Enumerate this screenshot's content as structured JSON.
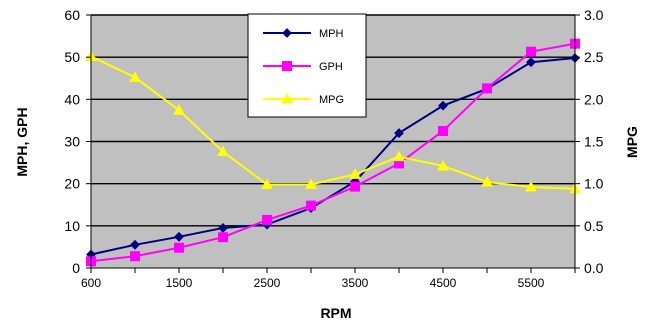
{
  "chart_data": {
    "type": "line",
    "x": [
      600,
      1000,
      1500,
      2000,
      2500,
      3000,
      3500,
      4000,
      4500,
      5000,
      5500,
      6000
    ],
    "x_tick_labels": [
      "600",
      "1500",
      "2500",
      "3500",
      "4500",
      "5500"
    ],
    "x_tick_values": [
      600,
      1500,
      2500,
      3500,
      4500,
      5500
    ],
    "xlabel": "RPM",
    "ylabel": "MPH, GPH",
    "y2label": "MPG",
    "ylim": [
      0,
      60
    ],
    "y_ticks": [
      0,
      10,
      20,
      30,
      40,
      50,
      60
    ],
    "y2lim": [
      0,
      3
    ],
    "y2_ticks": [
      "0.0",
      "0.5",
      "1.0",
      "1.5",
      "2.0",
      "2.5",
      "3.0"
    ],
    "plot_background": "#c0c0c0",
    "grid": true,
    "legend_position": "top-center",
    "series": [
      {
        "name": "MPH",
        "axis": "left",
        "marker": "diamond",
        "color": "#000080",
        "values": [
          3.2,
          5.5,
          7.4,
          9.5,
          10.3,
          14.2,
          20.5,
          32.0,
          38.5,
          42.5,
          48.8,
          49.8
        ]
      },
      {
        "name": "GPH",
        "axis": "left",
        "marker": "square",
        "color": "#ff00ff",
        "values": [
          1.6,
          2.8,
          4.8,
          7.3,
          11.4,
          14.8,
          19.3,
          24.8,
          32.5,
          42.6,
          51.3,
          53.2
        ]
      },
      {
        "name": "MPG",
        "axis": "right",
        "marker": "triangle",
        "color": "#ffff00",
        "values": [
          2.51,
          2.26,
          1.87,
          1.38,
          0.99,
          0.99,
          1.11,
          1.32,
          1.21,
          1.02,
          0.96,
          0.94
        ]
      }
    ]
  }
}
